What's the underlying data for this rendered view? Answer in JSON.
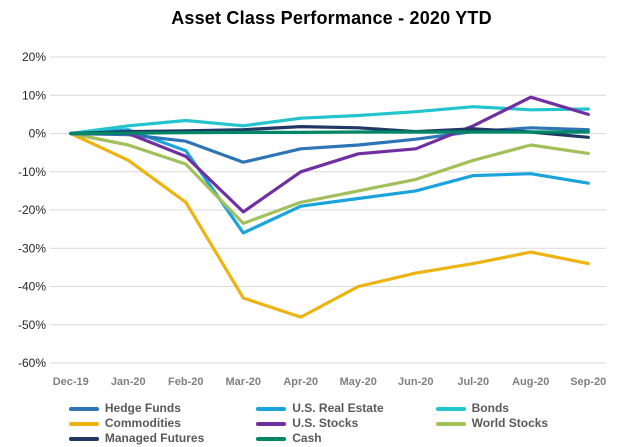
{
  "page": {
    "background_color": "#FFFFFF"
  },
  "chart_data": {
    "type": "line",
    "title": "Asset Class Performance - 2020 YTD",
    "xlabel": "",
    "ylabel": "",
    "categories": [
      "Dec-19",
      "Jan-20",
      "Feb-20",
      "Mar-20",
      "Apr-20",
      "May-20",
      "Jun-20",
      "Jul-20",
      "Aug-20",
      "Sep-20"
    ],
    "ylim": [
      -60,
      20
    ],
    "ytick_step": 10,
    "ytick_labels": [
      "20%",
      "10%",
      "0%",
      "-10%",
      "-20%",
      "-30%",
      "-40%",
      "-50%",
      "-60%"
    ],
    "grid": "horizontal",
    "gridline_color": "#D9D9D9",
    "axis_label_color_x": "#808080",
    "axis_label_color_y": "#262626",
    "legend_position": "bottom",
    "series": [
      {
        "name": "Hedge Funds",
        "color": "#2E75B6",
        "values": [
          0,
          -0.3,
          -2,
          -7.5,
          -4,
          -3,
          -1.5,
          0.5,
          1.5,
          1
        ]
      },
      {
        "name": "Commodities",
        "color": "#EDB411",
        "values": [
          0,
          -7,
          -18,
          -43,
          -48,
          -40,
          -36.5,
          -34,
          -31,
          -34
        ]
      },
      {
        "name": "Managed Futures",
        "color": "#1F3864",
        "values": [
          0,
          0.5,
          0.7,
          1,
          1.8,
          1.5,
          0.5,
          1.2,
          0.4,
          -1
        ]
      },
      {
        "name": "U.S. Real Estate",
        "color": "#1AA3DC",
        "values": [
          0,
          1,
          -4.5,
          -26,
          -19,
          -17,
          -15,
          -11,
          -10.5,
          -13
        ]
      },
      {
        "name": "U.S. Stocks",
        "color": "#7030A0",
        "values": [
          0,
          0,
          -6,
          -20.5,
          -10,
          -5.3,
          -4,
          2,
          9.5,
          5
        ]
      },
      {
        "name": "Cash",
        "color": "#008767",
        "values": [
          0,
          0.1,
          0.2,
          0.3,
          0.3,
          0.4,
          0.4,
          0.4,
          0.4,
          0.4
        ]
      },
      {
        "name": "Bonds",
        "color": "#22C4CE",
        "values": [
          0,
          2,
          3.4,
          2,
          4,
          4.7,
          5.7,
          7,
          6.2,
          6.4
        ]
      },
      {
        "name": "World Stocks",
        "color": "#A2C05A",
        "values": [
          0,
          -3,
          -8,
          -23.5,
          -18,
          -15,
          -12,
          -7,
          -3,
          -5.2
        ]
      }
    ]
  },
  "legend": {
    "columns": [
      [
        "Hedge Funds",
        "Commodities",
        "Managed Futures"
      ],
      [
        "U.S. Real Estate",
        "U.S. Stocks",
        "Cash"
      ],
      [
        "Bonds",
        "World Stocks"
      ]
    ]
  }
}
